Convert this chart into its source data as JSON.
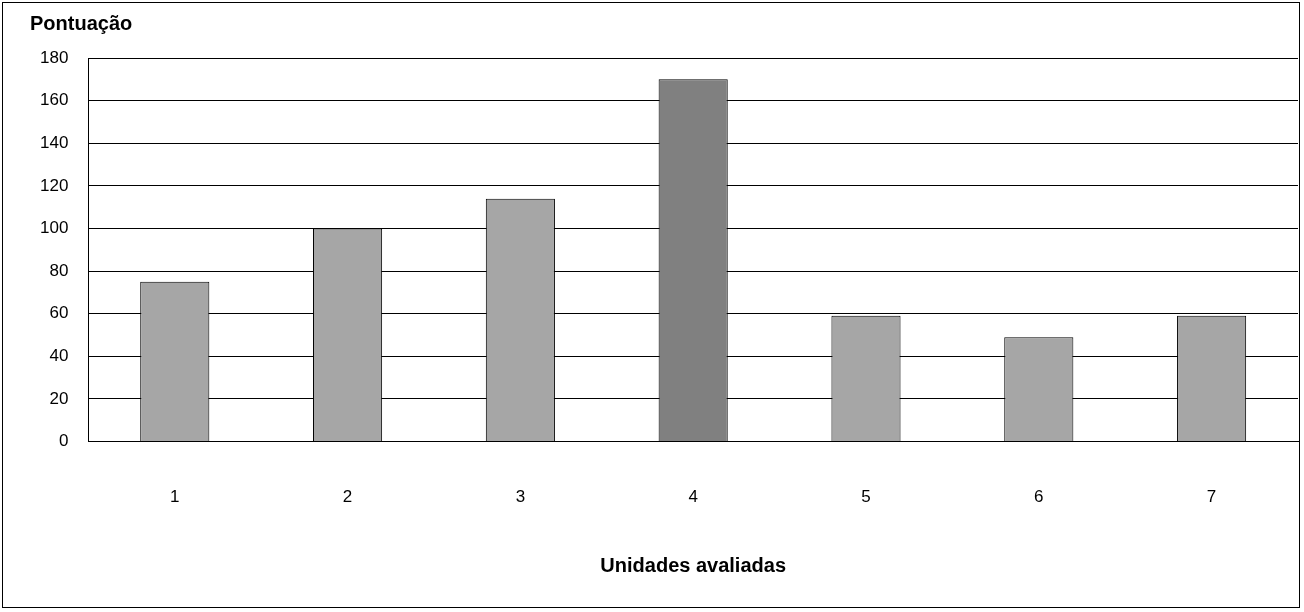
{
  "chart_data": {
    "type": "bar",
    "title": "Pontuação",
    "xlabel": "Unidades avaliadas",
    "categories": [
      "1",
      "2",
      "3",
      "4",
      "5",
      "6",
      "7"
    ],
    "values": [
      75,
      100,
      114,
      170,
      59,
      49,
      59
    ],
    "colors": [
      "#a6a6a6",
      "#a6a6a6",
      "#a6a6a6",
      "#808080",
      "#a6a6a6",
      "#a6a6a6",
      "#a6a6a6"
    ],
    "ylim": [
      0,
      180
    ],
    "yticks": [
      0,
      20,
      40,
      60,
      80,
      100,
      120,
      140,
      160,
      180
    ],
    "grid": "y",
    "legend": false
  }
}
